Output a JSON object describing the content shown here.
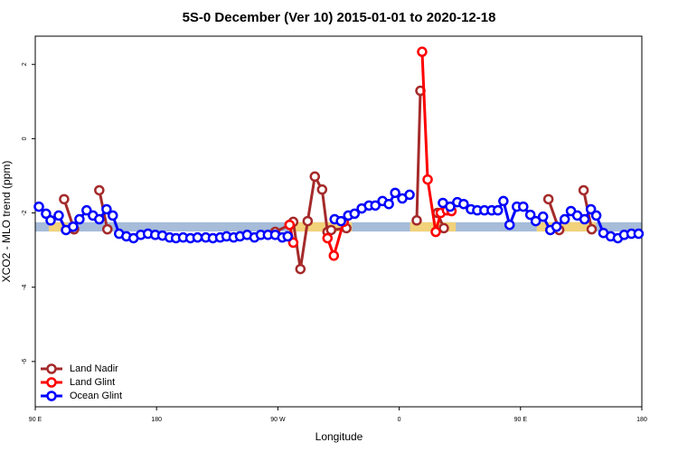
{
  "chart_data": {
    "type": "line",
    "title": "5S-0 December (Ver 10)   2015-01-01 to 2020-12-18",
    "x_label": "Longitude",
    "y_label": "XCO2 - MLO trend (ppm)",
    "xlim": [
      90,
      540
    ],
    "xticks": [
      {
        "value": 90,
        "label": "90 E"
      },
      180,
      {
        "value": 270,
        "label": "90 W"
      },
      {
        "value": 360,
        "label": "0"
      },
      {
        "value": 450,
        "label": "90 E"
      },
      180
    ],
    "ylim": [
      -7.22,
      2.76
    ],
    "yticks": [
      -6,
      -4,
      -2,
      0,
      2
    ],
    "ocean_band": {
      "range": [
        -2.5,
        -2.25
      ],
      "color": "#a6bcd9"
    },
    "land_band": {
      "color": "#f2d27a",
      "ranges": [
        [
          100,
          114
        ],
        [
          278,
          325
        ],
        [
          368,
          402
        ],
        [
          462,
          506
        ]
      ]
    },
    "legend": "bottom-left",
    "series": [
      {
        "name": "Land Nadir",
        "color": "#a52a2a",
        "x": [
          111.4,
          118.8,
          null,
          137.5,
          143.5,
          null,
          268.0,
          278.7,
          281.4,
          286.7,
          292.1,
          297.4,
          302.8,
          306.8,
          309.5,
          320.8,
          null,
          373.0,
          375.7,
          null,
          388.4,
          393.1,
          null,
          470.7,
          478.7,
          null,
          496.8,
          502.8
        ],
        "values": [
          -1.63,
          -2.44,
          null,
          -1.39,
          -2.44,
          null,
          -2.51,
          -2.32,
          -2.24,
          -3.51,
          -2.22,
          -1.02,
          -1.37,
          -2.51,
          -2.46,
          -2.41,
          null,
          -2.2,
          1.29,
          null,
          -2.0,
          -2.41,
          null,
          -1.63,
          -2.46,
          null,
          -1.39,
          -2.44
        ]
      },
      {
        "name": "Land Glint",
        "color": "#ff0000",
        "x": [
          278.7,
          281.4,
          null,
          306.8,
          311.5,
          318.8,
          null,
          377.0,
          381.1,
          387.1,
          390.8,
          395.4,
          398.8
        ],
        "values": [
          -2.32,
          -2.8,
          null,
          -2.68,
          -3.15,
          -2.24,
          null,
          2.34,
          -1.1,
          -2.51,
          -2.0,
          -1.93,
          -1.95
        ]
      },
      {
        "name": "Ocean Glint",
        "color": "#0000ff",
        "x": [
          92.7,
          98.0,
          101.4,
          107.4,
          112.8,
          118.1,
          122.8,
          128.1,
          132.8,
          137.5,
          142.9,
          147.5,
          152.2,
          157.6,
          162.9,
          168.3,
          173.6,
          179.0,
          184.3,
          189.7,
          194.4,
          199.7,
          205.1,
          210.4,
          216.5,
          221.8,
          227.2,
          231.9,
          237.2,
          241.9,
          247.2,
          252.6,
          257.3,
          262.6,
          268.0,
          273.3,
          277.3,
          null,
          312.1,
          316.8,
          322.2,
          326.9,
          332.2,
          337.6,
          342.3,
          347.6,
          352.3,
          357.0,
          362.3,
          367.7,
          null,
          392.4,
          397.8,
          403.1,
          407.8,
          413.2,
          417.9,
          423.2,
          428.6,
          433.2,
          437.3,
          441.9,
          447.3,
          452.0,
          457.3,
          461.3,
          466.7,
          472.1,
          476.7,
          482.8,
          487.4,
          492.1,
          497.5,
          502.2,
          506.2,
          511.5,
          516.9,
          522.2,
          526.9,
          532.3,
          537.6
        ],
        "values": [
          -1.83,
          -2.02,
          -2.2,
          -2.07,
          -2.46,
          -2.37,
          -2.17,
          -1.93,
          -2.07,
          -2.17,
          -1.9,
          -2.07,
          -2.56,
          -2.63,
          -2.68,
          -2.59,
          -2.56,
          -2.59,
          -2.61,
          -2.66,
          -2.68,
          -2.66,
          -2.68,
          -2.66,
          -2.66,
          -2.68,
          -2.66,
          -2.63,
          -2.66,
          -2.63,
          -2.59,
          -2.66,
          -2.59,
          -2.59,
          -2.59,
          -2.66,
          -2.63,
          null,
          -2.17,
          -2.22,
          -2.07,
          -2.02,
          -1.88,
          -1.8,
          -1.8,
          -1.68,
          -1.76,
          -1.46,
          -1.61,
          -1.51,
          null,
          -1.73,
          -1.83,
          -1.71,
          -1.76,
          -1.9,
          -1.93,
          -1.93,
          -1.93,
          -1.93,
          -1.68,
          -2.32,
          -1.83,
          -1.83,
          -2.05,
          -2.22,
          -2.1,
          -2.46,
          -2.37,
          -2.17,
          -1.95,
          -2.07,
          -2.17,
          -1.9,
          -2.07,
          -2.54,
          -2.63,
          -2.68,
          -2.59,
          -2.56,
          -2.56
        ]
      }
    ]
  }
}
